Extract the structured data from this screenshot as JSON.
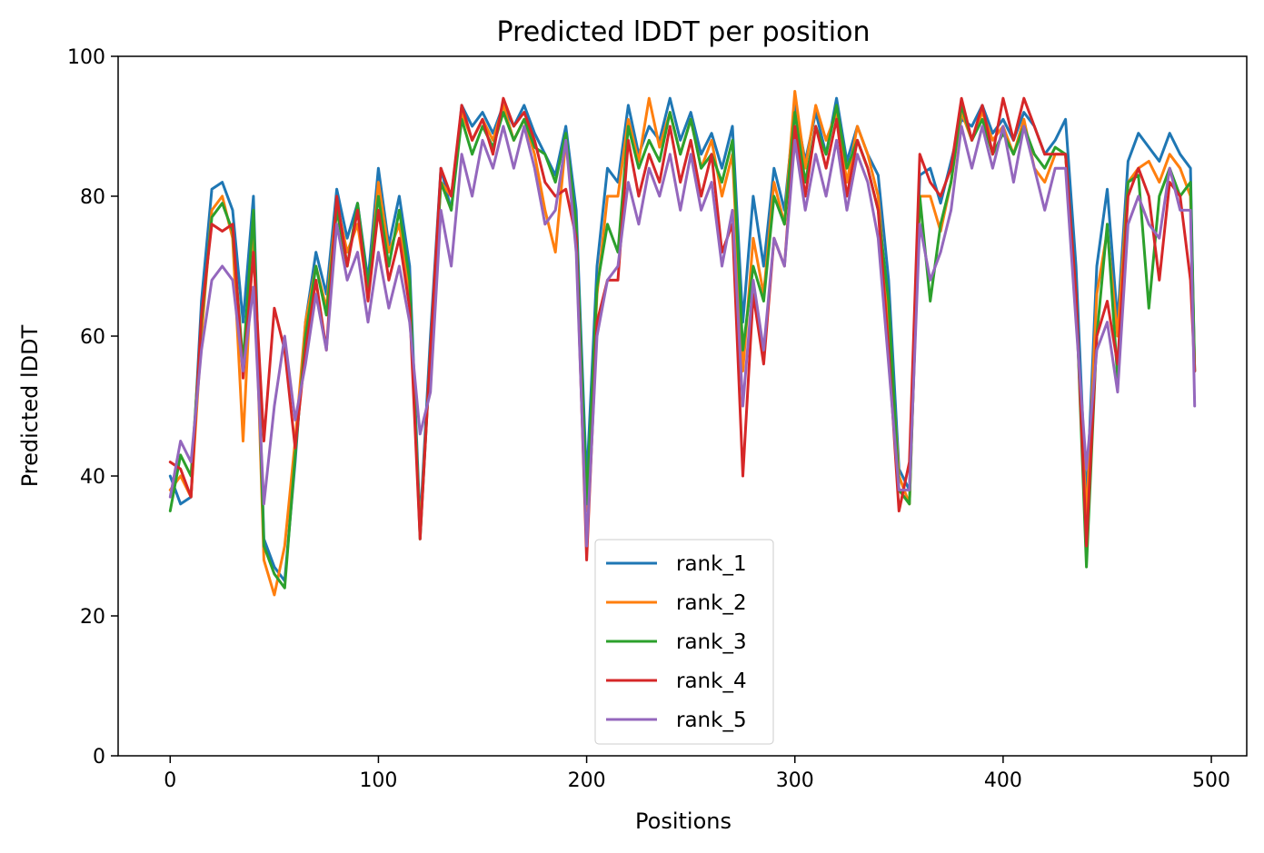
{
  "chart_data": {
    "type": "line",
    "title": "Predicted lDDT per position",
    "xlabel": "Positions",
    "ylabel": "Predicted lDDT",
    "xlim": [
      -25,
      517
    ],
    "ylim": [
      0,
      100
    ],
    "xticks": [
      0,
      100,
      200,
      300,
      400,
      500
    ],
    "yticks": [
      0,
      20,
      40,
      60,
      80,
      100
    ],
    "xtick_labels": [
      "0",
      "100",
      "200",
      "300",
      "400",
      "500"
    ],
    "ytick_labels": [
      "0",
      "20",
      "40",
      "60",
      "80",
      "100"
    ],
    "grid": false,
    "legend_placement": "bottom-center",
    "x": [
      0,
      5,
      10,
      15,
      20,
      25,
      30,
      35,
      40,
      45,
      50,
      55,
      60,
      65,
      70,
      75,
      80,
      85,
      90,
      95,
      100,
      105,
      110,
      115,
      120,
      125,
      130,
      135,
      140,
      145,
      150,
      155,
      160,
      165,
      170,
      175,
      180,
      185,
      190,
      195,
      200,
      205,
      210,
      215,
      220,
      225,
      230,
      235,
      240,
      245,
      250,
      255,
      260,
      265,
      270,
      275,
      280,
      285,
      290,
      295,
      300,
      305,
      310,
      315,
      320,
      325,
      330,
      335,
      340,
      345,
      350,
      355,
      360,
      365,
      370,
      375,
      380,
      385,
      390,
      395,
      400,
      405,
      410,
      415,
      420,
      425,
      430,
      435,
      440,
      445,
      450,
      455,
      460,
      465,
      470,
      475,
      480,
      485,
      490,
      492
    ],
    "series": [
      {
        "name": "rank_1",
        "color": "#1f77b4",
        "values": [
          40,
          36,
          37,
          65,
          81,
          82,
          78,
          62,
          80,
          31,
          27,
          25,
          42,
          62,
          72,
          66,
          81,
          74,
          79,
          68,
          84,
          73,
          80,
          70,
          33,
          60,
          84,
          78,
          93,
          90,
          92,
          89,
          93,
          90,
          93,
          89,
          86,
          83,
          90,
          78,
          39,
          70,
          84,
          82,
          93,
          86,
          90,
          88,
          94,
          88,
          92,
          86,
          89,
          84,
          90,
          62,
          80,
          70,
          84,
          78,
          93,
          85,
          92,
          86,
          94,
          85,
          90,
          86,
          83,
          68,
          41,
          38,
          83,
          84,
          79,
          85,
          91,
          90,
          93,
          89,
          91,
          88,
          92,
          90,
          86,
          88,
          91,
          70,
          36,
          70,
          81,
          62,
          85,
          89,
          87,
          85,
          89,
          86,
          84,
          55
        ]
      },
      {
        "name": "rank_2",
        "color": "#ff7f0e",
        "values": [
          38,
          40,
          37,
          60,
          78,
          80,
          74,
          45,
          75,
          28,
          23,
          30,
          45,
          62,
          70,
          64,
          79,
          72,
          76,
          66,
          82,
          72,
          76,
          66,
          32,
          58,
          82,
          80,
          92,
          88,
          91,
          88,
          93,
          88,
          91,
          86,
          78,
          72,
          88,
          75,
          35,
          66,
          80,
          80,
          91,
          85,
          94,
          87,
          92,
          86,
          91,
          84,
          88,
          80,
          86,
          55,
          74,
          66,
          82,
          76,
          95,
          84,
          93,
          88,
          92,
          82,
          90,
          86,
          80,
          62,
          40,
          36,
          80,
          80,
          75,
          82,
          92,
          88,
          92,
          88,
          90,
          86,
          91,
          84,
          82,
          86,
          86,
          64,
          34,
          66,
          75,
          60,
          82,
          84,
          85,
          82,
          86,
          84,
          80,
          55
        ]
      },
      {
        "name": "rank_3",
        "color": "#2ca02c",
        "values": [
          35,
          43,
          40,
          62,
          77,
          79,
          75,
          56,
          78,
          30,
          26,
          24,
          43,
          60,
          70,
          63,
          78,
          70,
          79,
          67,
          80,
          70,
          78,
          68,
          31,
          58,
          82,
          78,
          91,
          86,
          90,
          87,
          92,
          88,
          91,
          87,
          86,
          82,
          89,
          76,
          36,
          67,
          76,
          72,
          90,
          84,
          88,
          85,
          92,
          86,
          91,
          84,
          86,
          82,
          88,
          58,
          70,
          65,
          80,
          76,
          92,
          82,
          90,
          86,
          93,
          84,
          88,
          84,
          78,
          65,
          38,
          36,
          80,
          65,
          76,
          82,
          93,
          88,
          91,
          86,
          89,
          86,
          90,
          86,
          84,
          87,
          86,
          66,
          27,
          60,
          76,
          54,
          82,
          83,
          64,
          80,
          84,
          80,
          82,
          55
        ]
      },
      {
        "name": "rank_4",
        "color": "#d62728",
        "values": [
          42,
          41,
          37,
          63,
          76,
          75,
          76,
          54,
          72,
          45,
          64,
          58,
          44,
          58,
          68,
          58,
          80,
          70,
          78,
          65,
          78,
          68,
          74,
          64,
          31,
          58,
          84,
          80,
          93,
          88,
          91,
          86,
          94,
          90,
          92,
          88,
          82,
          80,
          81,
          74,
          28,
          62,
          68,
          68,
          88,
          80,
          86,
          82,
          90,
          82,
          88,
          80,
          86,
          72,
          76,
          40,
          66,
          56,
          74,
          70,
          90,
          80,
          90,
          84,
          91,
          80,
          88,
          84,
          78,
          58,
          35,
          42,
          86,
          82,
          80,
          84,
          94,
          88,
          93,
          86,
          94,
          88,
          94,
          90,
          86,
          86,
          86,
          66,
          30,
          60,
          65,
          56,
          80,
          84,
          80,
          68,
          82,
          80,
          68,
          55
        ]
      },
      {
        "name": "rank_5",
        "color": "#9467bd",
        "values": [
          37,
          45,
          42,
          58,
          68,
          70,
          68,
          55,
          67,
          36,
          50,
          60,
          48,
          56,
          66,
          58,
          76,
          68,
          72,
          62,
          72,
          64,
          70,
          62,
          46,
          52,
          78,
          70,
          86,
          80,
          88,
          84,
          90,
          84,
          90,
          84,
          76,
          78,
          88,
          72,
          30,
          60,
          68,
          70,
          82,
          76,
          84,
          80,
          86,
          78,
          86,
          78,
          82,
          70,
          78,
          50,
          68,
          58,
          74,
          70,
          88,
          78,
          86,
          80,
          88,
          78,
          86,
          82,
          74,
          56,
          38,
          38,
          76,
          68,
          72,
          78,
          90,
          84,
          90,
          84,
          90,
          82,
          90,
          84,
          78,
          84,
          84,
          62,
          41,
          58,
          62,
          52,
          76,
          80,
          76,
          74,
          84,
          78,
          78,
          50
        ]
      }
    ]
  }
}
